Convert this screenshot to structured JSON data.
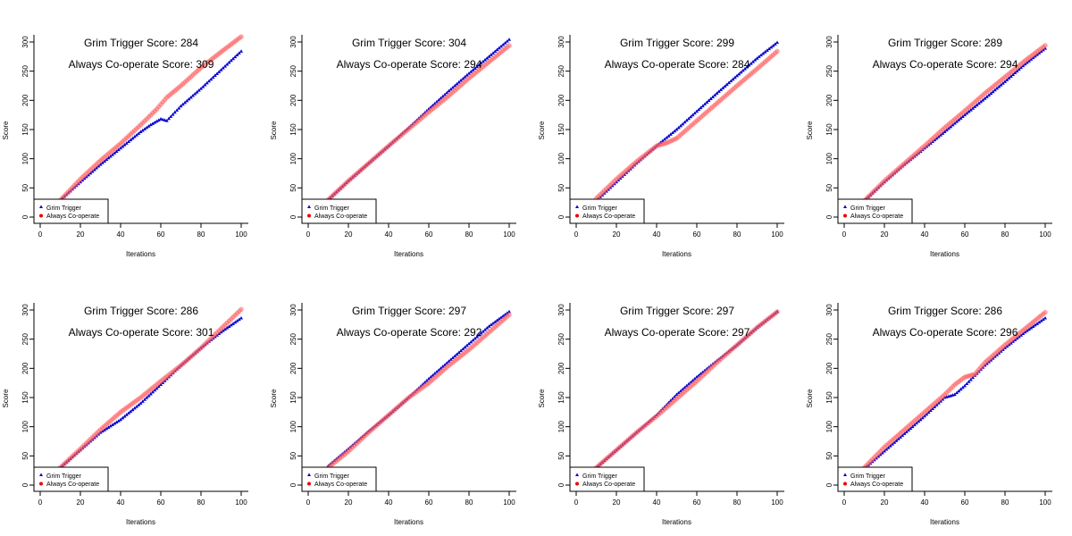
{
  "colors": {
    "grim": "#0000cc",
    "coop": "#ff5a5a",
    "axis": "#000000",
    "legend_grim_marker": "#0000cc",
    "legend_coop_marker": "#ee0000"
  },
  "chart_data": [
    {
      "type": "scatter",
      "xlabel": "Iterations",
      "ylabel": "Score",
      "xlim": [
        0,
        100
      ],
      "ylim": [
        0,
        300
      ],
      "xticks": [
        0,
        20,
        40,
        60,
        80,
        100
      ],
      "yticks": [
        0,
        50,
        100,
        150,
        200,
        250,
        300
      ],
      "legend_position": "bottom-left",
      "annotations": {
        "grim_text": "Grim Trigger  Score: 284",
        "coop_text": "Always Co-operate  Score: 309"
      },
      "series": [
        {
          "name": "Grim Trigger",
          "marker": "triangle",
          "x": [
            10,
            20,
            30,
            40,
            50,
            55,
            60,
            63,
            70,
            80,
            90,
            100
          ],
          "y": [
            29,
            60,
            90,
            118,
            146,
            158,
            168,
            165,
            190,
            220,
            252,
            284
          ]
        },
        {
          "name": "Always Co-operate",
          "marker": "circle",
          "x": [
            10,
            20,
            30,
            40,
            50,
            58,
            63,
            70,
            80,
            90,
            100
          ],
          "y": [
            29,
            65,
            97,
            126,
            158,
            185,
            205,
            225,
            256,
            283,
            309
          ]
        }
      ]
    },
    {
      "type": "scatter",
      "xlabel": "Iterations",
      "ylabel": "Score",
      "xlim": [
        0,
        100
      ],
      "ylim": [
        0,
        300
      ],
      "xticks": [
        0,
        20,
        40,
        60,
        80,
        100
      ],
      "yticks": [
        0,
        50,
        100,
        150,
        200,
        250,
        300
      ],
      "legend_position": "bottom-left",
      "annotations": {
        "grim_text": "Grim Trigger  Score: 304",
        "coop_text": "Always Co-operate  Score: 294"
      },
      "series": [
        {
          "name": "Grim Trigger",
          "marker": "triangle",
          "x": [
            10,
            20,
            30,
            40,
            50,
            60,
            70,
            80,
            90,
            100
          ],
          "y": [
            30,
            62,
            92,
            122,
            153,
            185,
            216,
            246,
            275,
            304
          ]
        },
        {
          "name": "Always Co-operate",
          "marker": "circle",
          "x": [
            10,
            20,
            30,
            40,
            50,
            60,
            70,
            80,
            90,
            100
          ],
          "y": [
            30,
            62,
            92,
            122,
            151,
            180,
            208,
            238,
            266,
            294
          ]
        }
      ]
    },
    {
      "type": "scatter",
      "xlabel": "Iterations",
      "ylabel": "Score",
      "xlim": [
        0,
        100
      ],
      "ylim": [
        0,
        300
      ],
      "xticks": [
        0,
        20,
        40,
        60,
        80,
        100
      ],
      "yticks": [
        0,
        50,
        100,
        150,
        200,
        250,
        300
      ],
      "legend_position": "bottom-left",
      "annotations": {
        "grim_text": "Grim Trigger  Score: 299",
        "coop_text": "Always Co-operate  Score: 284"
      },
      "series": [
        {
          "name": "Grim Trigger",
          "marker": "triangle",
          "x": [
            10,
            20,
            30,
            40,
            45,
            50,
            60,
            70,
            80,
            90,
            100
          ],
          "y": [
            28,
            60,
            92,
            122,
            136,
            150,
            181,
            212,
            242,
            272,
            299
          ]
        },
        {
          "name": "Always Co-operate",
          "marker": "circle",
          "x": [
            10,
            20,
            30,
            40,
            45,
            50,
            60,
            70,
            80,
            90,
            100
          ],
          "y": [
            32,
            65,
            95,
            122,
            127,
            135,
            165,
            195,
            225,
            254,
            284
          ]
        }
      ]
    },
    {
      "type": "scatter",
      "xlabel": "Iterations",
      "ylabel": "Score",
      "xlim": [
        0,
        100
      ],
      "ylim": [
        0,
        300
      ],
      "xticks": [
        0,
        20,
        40,
        60,
        80,
        100
      ],
      "yticks": [
        0,
        50,
        100,
        150,
        200,
        250,
        300
      ],
      "legend_position": "bottom-left",
      "annotations": {
        "grim_text": "Grim Trigger  Score: 289",
        "coop_text": "Always Co-operate  Score: 294"
      },
      "series": [
        {
          "name": "Grim Trigger",
          "marker": "triangle",
          "x": [
            10,
            20,
            30,
            40,
            50,
            60,
            70,
            80,
            90,
            100
          ],
          "y": [
            28,
            60,
            90,
            118,
            146,
            175,
            203,
            232,
            262,
            289
          ]
        },
        {
          "name": "Always Co-operate",
          "marker": "circle",
          "x": [
            10,
            20,
            30,
            40,
            50,
            60,
            70,
            80,
            90,
            100
          ],
          "y": [
            28,
            62,
            92,
            122,
            153,
            182,
            212,
            240,
            268,
            294
          ]
        }
      ]
    },
    {
      "type": "scatter",
      "xlabel": "Iterations",
      "ylabel": "Score",
      "xlim": [
        0,
        100
      ],
      "ylim": [
        0,
        300
      ],
      "xticks": [
        0,
        20,
        40,
        60,
        80,
        100
      ],
      "yticks": [
        0,
        50,
        100,
        150,
        200,
        250,
        300
      ],
      "legend_position": "bottom-left",
      "annotations": {
        "grim_text": "Grim Trigger  Score: 286",
        "coop_text": "Always Co-operate  Score: 301"
      },
      "series": [
        {
          "name": "Grim Trigger",
          "marker": "triangle",
          "x": [
            10,
            20,
            30,
            40,
            50,
            60,
            70,
            80,
            90,
            100
          ],
          "y": [
            30,
            60,
            90,
            112,
            140,
            172,
            205,
            235,
            262,
            286
          ]
        },
        {
          "name": "Always Co-operate",
          "marker": "circle",
          "x": [
            10,
            20,
            30,
            40,
            50,
            60,
            70,
            80,
            90,
            100
          ],
          "y": [
            30,
            62,
            95,
            125,
            150,
            178,
            205,
            235,
            268,
            301
          ]
        }
      ]
    },
    {
      "type": "scatter",
      "xlabel": "Iterations",
      "ylabel": "Score",
      "xlim": [
        0,
        100
      ],
      "ylim": [
        0,
        300
      ],
      "xticks": [
        0,
        20,
        40,
        60,
        80,
        100
      ],
      "yticks": [
        0,
        50,
        100,
        150,
        200,
        250,
        300
      ],
      "legend_position": "bottom-left",
      "annotations": {
        "grim_text": "Grim Trigger  Score: 297",
        "coop_text": "Always Co-operate  Score: 292"
      },
      "series": [
        {
          "name": "Grim Trigger",
          "marker": "triangle",
          "x": [
            10,
            20,
            30,
            40,
            50,
            60,
            70,
            80,
            90,
            100
          ],
          "y": [
            33,
            62,
            92,
            120,
            150,
            182,
            212,
            242,
            272,
            297
          ]
        },
        {
          "name": "Always Co-operate",
          "marker": "circle",
          "x": [
            10,
            20,
            30,
            40,
            50,
            60,
            70,
            80,
            90,
            100
          ],
          "y": [
            30,
            58,
            90,
            120,
            150,
            175,
            205,
            232,
            262,
            292
          ]
        }
      ]
    },
    {
      "type": "scatter",
      "xlabel": "Iterations",
      "ylabel": "Score",
      "xlim": [
        0,
        100
      ],
      "ylim": [
        0,
        300
      ],
      "xticks": [
        0,
        20,
        40,
        60,
        80,
        100
      ],
      "yticks": [
        0,
        50,
        100,
        150,
        200,
        250,
        300
      ],
      "legend_position": "bottom-left",
      "annotations": {
        "grim_text": "Grim Trigger  Score: 297",
        "coop_text": "Always Co-operate  Score: 297"
      },
      "series": [
        {
          "name": "Grim Trigger",
          "marker": "triangle",
          "x": [
            10,
            20,
            30,
            40,
            50,
            60,
            70,
            80,
            90,
            100
          ],
          "y": [
            30,
            60,
            90,
            120,
            155,
            185,
            213,
            240,
            270,
            297
          ]
        },
        {
          "name": "Always Co-operate",
          "marker": "circle",
          "x": [
            10,
            20,
            30,
            40,
            50,
            60,
            70,
            80,
            90,
            100
          ],
          "y": [
            30,
            60,
            90,
            118,
            148,
            178,
            210,
            240,
            270,
            297
          ]
        }
      ]
    },
    {
      "type": "scatter",
      "xlabel": "Iterations",
      "ylabel": "Score",
      "xlim": [
        0,
        100
      ],
      "ylim": [
        0,
        300
      ],
      "xticks": [
        0,
        20,
        40,
        60,
        80,
        100
      ],
      "yticks": [
        0,
        50,
        100,
        150,
        200,
        250,
        300
      ],
      "legend_position": "bottom-left",
      "annotations": {
        "grim_text": "Grim Trigger  Score: 286",
        "coop_text": "Always Co-operate  Score: 296"
      },
      "series": [
        {
          "name": "Grim Trigger",
          "marker": "triangle",
          "x": [
            10,
            20,
            30,
            40,
            50,
            55,
            60,
            70,
            80,
            90,
            100
          ],
          "y": [
            28,
            58,
            88,
            118,
            150,
            155,
            170,
            205,
            235,
            262,
            286
          ]
        },
        {
          "name": "Always Co-operate",
          "marker": "circle",
          "x": [
            10,
            20,
            30,
            40,
            50,
            55,
            60,
            65,
            70,
            80,
            90,
            100
          ],
          "y": [
            30,
            65,
            95,
            125,
            155,
            172,
            185,
            190,
            210,
            240,
            268,
            296
          ]
        }
      ]
    }
  ]
}
